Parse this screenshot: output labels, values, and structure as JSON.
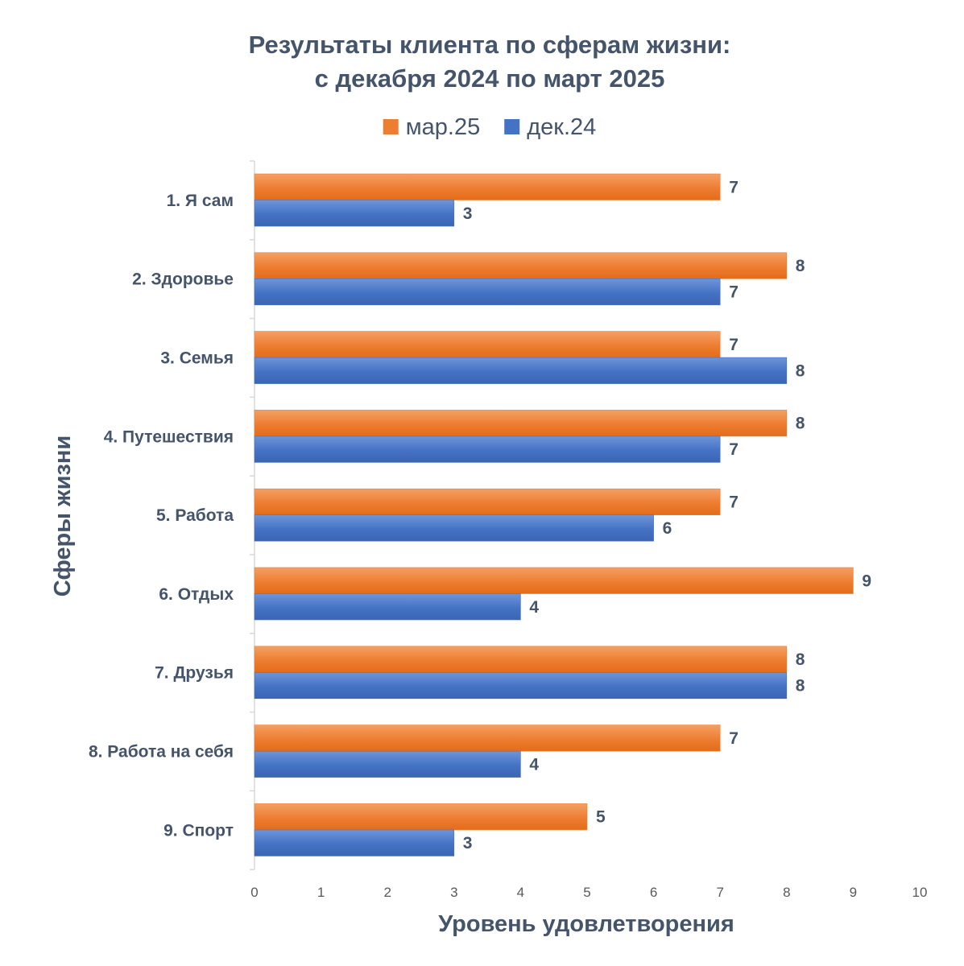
{
  "chart_data": {
    "type": "bar",
    "orientation": "horizontal",
    "title_lines": [
      "Результаты клиента по сферам жизни:",
      "с декабря 2024 по март 2025"
    ],
    "xlabel": "Уровень удовлетворения",
    "ylabel": "Сферы жизни",
    "xlim": [
      0,
      10
    ],
    "xticks": [
      "0",
      "1",
      "2",
      "3",
      "4",
      "5",
      "6",
      "7",
      "8",
      "9",
      "10"
    ],
    "legend_position": "top",
    "grid": false,
    "categories": [
      "1. Я сам",
      "2. Здоровье",
      "3. Семья",
      "4. Путешествия",
      "5. Работа",
      "6. Отдых",
      "7. Друзья",
      "8. Работа на себя",
      "9. Спорт"
    ],
    "series": [
      {
        "name": "мар.25",
        "color": "#ed7d31",
        "values": [
          7,
          8,
          7,
          8,
          7,
          9,
          8,
          7,
          5
        ]
      },
      {
        "name": "дек.24",
        "color": "#4472c4",
        "values": [
          3,
          7,
          8,
          7,
          6,
          4,
          8,
          4,
          3
        ]
      }
    ]
  }
}
